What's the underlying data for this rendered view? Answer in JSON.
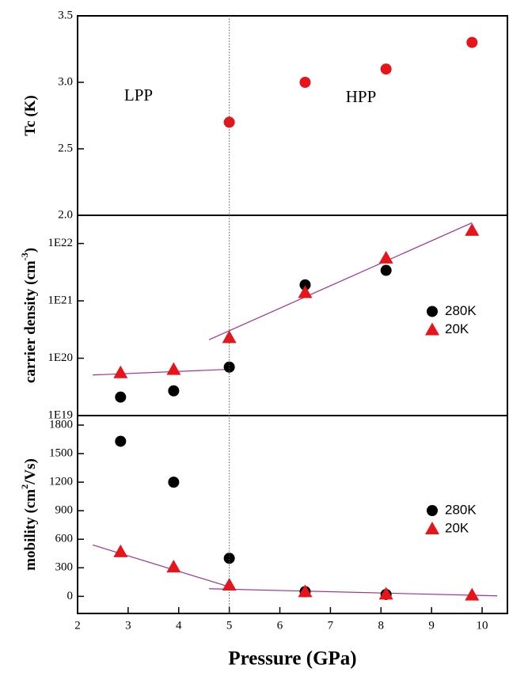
{
  "chart_data": [
    {
      "type": "scatter",
      "y_label": "Tc (K)",
      "annotations": [
        "LPP",
        "HPP"
      ],
      "vline": 5,
      "xlim": [
        2,
        10.5
      ],
      "ylim": [
        2.0,
        3.5
      ],
      "yticks": [
        {
          "value": 2,
          "label": "2.0"
        },
        2.5,
        {
          "value": 3,
          "label": "3.0"
        },
        3.5
      ],
      "series": [
        {
          "color": "#e8141a",
          "marker": "circle",
          "x": [
            5,
            6.5,
            8.1,
            9.8
          ],
          "values": [
            2.7,
            3.0,
            3.1,
            3.3
          ]
        }
      ]
    },
    {
      "type": "scatter",
      "y_label": "carrier density (cm",
      "y_label_sup": "-3",
      "y_label_end": ")",
      "log_y": true,
      "legend": "right",
      "xlim": [
        2,
        10.5
      ],
      "ylim": [
        1e+19,
        3.1e+22
      ],
      "yticks": [
        {
          "value": 1e+19,
          "label": "1E19"
        },
        {
          "value": 1e+20,
          "label": "1E20"
        },
        {
          "value": 1e+21,
          "label": "1E21"
        },
        {
          "value": 1e+22,
          "label": "1E22"
        }
      ],
      "series": [
        {
          "name": "280K",
          "color": "#000000",
          "marker": "circle",
          "x": [
            2.85,
            3.9,
            5,
            6.5,
            8.1
          ],
          "values": [
            2.1e+19,
            2.7e+19,
            7e+19,
            1.9e+21,
            3.4e+21
          ]
        },
        {
          "name": "20K",
          "color": "#e8141a",
          "marker": "triangle",
          "x": [
            2.85,
            3.9,
            5,
            6.5,
            8.1,
            9.8
          ],
          "values": [
            5.6e+19,
            6.4e+19,
            2.3e+20,
            1.4e+21,
            5.6e+21,
            1.7e+22
          ]
        }
      ],
      "fit_color": "#a0309a",
      "fits": [
        {
          "x": [
            2.3,
            5
          ],
          "values": [
            5.1e+19,
            6.4e+19
          ]
        },
        {
          "x": [
            4.6,
            9.8
          ],
          "values": [
            2.1e+20,
            2.3e+22
          ]
        }
      ]
    },
    {
      "type": "scatter",
      "y_label": "mobility (cm",
      "y_label_sup": "2",
      "y_label_end": "/Vs)",
      "legend": "right",
      "x_label": "Pressure (GPa)",
      "xlim": [
        2,
        10.5
      ],
      "xticks": [
        2,
        3,
        4,
        5,
        6,
        7,
        8,
        9,
        10
      ],
      "ylim": [
        -180,
        1900
      ],
      "yticks": [
        0,
        300,
        600,
        900,
        1200,
        1500,
        1800
      ],
      "series": [
        {
          "name": "280K",
          "color": "#000000",
          "marker": "circle",
          "x": [
            2.85,
            3.9,
            5,
            6.5,
            8.1
          ],
          "values": [
            1630,
            1200,
            400,
            50,
            20
          ]
        },
        {
          "name": "20K",
          "color": "#e8141a",
          "marker": "triangle",
          "x": [
            2.85,
            3.9,
            5,
            6.5,
            8.1,
            9.8
          ],
          "values": [
            470,
            310,
            120,
            50,
            25,
            15
          ]
        }
      ],
      "fit_color": "#a0309a",
      "fits": [
        {
          "x": [
            2.3,
            5
          ],
          "values": [
            540,
            100
          ]
        },
        {
          "x": [
            4.6,
            10.3
          ],
          "values": [
            80,
            5
          ]
        }
      ]
    }
  ]
}
